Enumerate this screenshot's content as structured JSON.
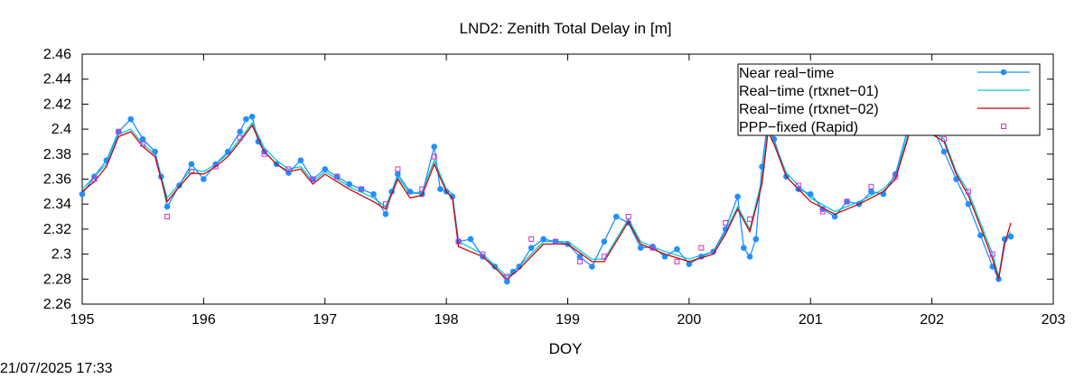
{
  "chart_data": {
    "type": "line",
    "title": "LND2: Zenith Total Delay in [m]",
    "xlabel": "DOY",
    "ylabel": "",
    "xlim": [
      195,
      203
    ],
    "ylim": [
      2.26,
      2.46
    ],
    "xticks": [
      195,
      196,
      197,
      198,
      199,
      200,
      201,
      202,
      203
    ],
    "yticks": [
      2.26,
      2.28,
      2.3,
      2.32,
      2.34,
      2.36,
      2.38,
      2.4,
      2.42,
      2.44,
      2.46
    ],
    "ytick_labels": [
      "2.26",
      "2.28",
      "2.3",
      "2.32",
      "2.34",
      "2.36",
      "2.38",
      "2.4",
      "2.42",
      "2.44",
      "2.46"
    ],
    "grid": false,
    "legend_position": "top-right",
    "series": [
      {
        "name": "Near real−time",
        "color": "#1e90ff",
        "style": "line-points",
        "x": [
          195.0,
          195.1,
          195.2,
          195.3,
          195.4,
          195.5,
          195.6,
          195.65,
          195.7,
          195.8,
          195.9,
          196.0,
          196.1,
          196.2,
          196.3,
          196.35,
          196.4,
          196.45,
          196.5,
          196.6,
          196.7,
          196.8,
          196.9,
          197.0,
          197.1,
          197.2,
          197.3,
          197.4,
          197.5,
          197.55,
          197.6,
          197.7,
          197.8,
          197.9,
          197.95,
          198.0,
          198.05,
          198.1,
          198.2,
          198.3,
          198.4,
          198.5,
          198.55,
          198.6,
          198.7,
          198.8,
          198.9,
          199.0,
          199.1,
          199.2,
          199.3,
          199.4,
          199.5,
          199.6,
          199.7,
          199.8,
          199.9,
          200.0,
          200.1,
          200.2,
          200.3,
          200.4,
          200.45,
          200.5,
          200.55,
          200.6,
          200.65,
          200.7,
          200.8,
          200.9,
          201.0,
          201.1,
          201.2,
          201.3,
          201.4,
          201.5,
          201.6,
          201.7,
          201.8,
          201.85,
          201.9,
          202.0,
          202.1,
          202.2,
          202.3,
          202.4,
          202.5,
          202.55,
          202.6,
          202.65
        ],
        "values": [
          2.348,
          2.362,
          2.375,
          2.398,
          2.408,
          2.392,
          2.382,
          2.362,
          2.338,
          2.355,
          2.372,
          2.36,
          2.372,
          2.382,
          2.398,
          2.408,
          2.41,
          2.39,
          2.382,
          2.372,
          2.365,
          2.375,
          2.36,
          2.368,
          2.362,
          2.356,
          2.352,
          2.348,
          2.332,
          2.35,
          2.364,
          2.35,
          2.348,
          2.386,
          2.352,
          2.35,
          2.346,
          2.31,
          2.312,
          2.298,
          2.29,
          2.278,
          2.286,
          2.29,
          2.305,
          2.312,
          2.31,
          2.308,
          2.298,
          2.29,
          2.31,
          2.33,
          2.325,
          2.305,
          2.306,
          2.298,
          2.304,
          2.292,
          2.298,
          2.302,
          2.32,
          2.346,
          2.305,
          2.298,
          2.312,
          2.37,
          2.408,
          2.392,
          2.362,
          2.352,
          2.348,
          2.336,
          2.33,
          2.342,
          2.34,
          2.35,
          2.348,
          2.364,
          2.4,
          2.41,
          2.398,
          2.402,
          2.382,
          2.36,
          2.34,
          2.315,
          2.29,
          2.28,
          2.312,
          2.314
        ]
      },
      {
        "name": "Real−time (rtxnet−01)",
        "color": "#00ced1",
        "style": "line",
        "x": [
          195.0,
          195.1,
          195.2,
          195.3,
          195.4,
          195.5,
          195.6,
          195.7,
          195.8,
          195.9,
          196.0,
          196.1,
          196.2,
          196.3,
          196.4,
          196.5,
          196.6,
          196.7,
          196.8,
          196.9,
          197.0,
          197.2,
          197.4,
          197.5,
          197.6,
          197.7,
          197.8,
          197.9,
          198.0,
          198.05,
          198.1,
          198.3,
          198.5,
          198.6,
          198.8,
          199.0,
          199.2,
          199.3,
          199.5,
          199.6,
          199.8,
          200.0,
          200.2,
          200.3,
          200.4,
          200.5,
          200.6,
          200.65,
          200.7,
          200.8,
          201.0,
          201.2,
          201.4,
          201.6,
          201.7,
          201.8,
          201.85,
          201.9,
          202.0,
          202.1,
          202.2,
          202.3,
          202.4,
          202.5,
          202.55,
          202.6,
          202.65
        ],
        "values": [
          2.352,
          2.362,
          2.372,
          2.396,
          2.4,
          2.388,
          2.38,
          2.345,
          2.356,
          2.368,
          2.366,
          2.372,
          2.38,
          2.392,
          2.405,
          2.385,
          2.375,
          2.368,
          2.37,
          2.358,
          2.366,
          2.354,
          2.345,
          2.338,
          2.362,
          2.348,
          2.35,
          2.375,
          2.352,
          2.348,
          2.31,
          2.3,
          2.282,
          2.29,
          2.31,
          2.31,
          2.296,
          2.296,
          2.328,
          2.31,
          2.302,
          2.296,
          2.302,
          2.318,
          2.338,
          2.32,
          2.36,
          2.402,
          2.39,
          2.365,
          2.345,
          2.334,
          2.342,
          2.352,
          2.362,
          2.395,
          2.422,
          2.41,
          2.398,
          2.392,
          2.366,
          2.35,
          2.325,
          2.3,
          2.282,
          2.31,
          2.318
        ]
      },
      {
        "name": "Real−time (rtxnet−02)",
        "color": "#cc0000",
        "style": "line",
        "x": [
          195.0,
          195.1,
          195.2,
          195.3,
          195.4,
          195.5,
          195.6,
          195.7,
          195.8,
          195.9,
          196.0,
          196.1,
          196.2,
          196.3,
          196.4,
          196.5,
          196.6,
          196.7,
          196.8,
          196.9,
          197.0,
          197.2,
          197.4,
          197.5,
          197.6,
          197.7,
          197.8,
          197.9,
          198.0,
          198.05,
          198.1,
          198.3,
          198.5,
          198.6,
          198.8,
          199.0,
          199.2,
          199.3,
          199.5,
          199.6,
          199.8,
          200.0,
          200.2,
          200.3,
          200.4,
          200.5,
          200.6,
          200.65,
          200.7,
          200.8,
          201.0,
          201.2,
          201.4,
          201.6,
          201.7,
          201.8,
          201.85,
          201.9,
          202.0,
          202.1,
          202.2,
          202.3,
          202.4,
          202.5,
          202.55,
          202.6,
          202.65
        ],
        "values": [
          2.35,
          2.358,
          2.37,
          2.394,
          2.398,
          2.386,
          2.378,
          2.342,
          2.354,
          2.365,
          2.364,
          2.37,
          2.378,
          2.39,
          2.403,
          2.382,
          2.372,
          2.366,
          2.368,
          2.356,
          2.364,
          2.352,
          2.342,
          2.336,
          2.36,
          2.345,
          2.347,
          2.372,
          2.35,
          2.345,
          2.306,
          2.298,
          2.28,
          2.288,
          2.308,
          2.308,
          2.294,
          2.294,
          2.326,
          2.308,
          2.3,
          2.294,
          2.3,
          2.316,
          2.336,
          2.318,
          2.356,
          2.398,
          2.388,
          2.362,
          2.342,
          2.332,
          2.34,
          2.35,
          2.36,
          2.392,
          2.424,
          2.408,
          2.396,
          2.39,
          2.364,
          2.347,
          2.322,
          2.296,
          2.28,
          2.308,
          2.325
        ]
      },
      {
        "name": "PPP−fixed (Rapid)",
        "color": "#cc33cc",
        "style": "points",
        "x": [
          195.1,
          195.3,
          195.5,
          195.7,
          195.9,
          196.1,
          196.3,
          196.5,
          196.7,
          196.9,
          197.1,
          197.3,
          197.5,
          197.6,
          197.8,
          197.9,
          198.1,
          198.3,
          198.5,
          198.7,
          198.9,
          199.1,
          199.3,
          199.5,
          199.7,
          199.9,
          200.1,
          200.3,
          200.5,
          200.7,
          200.9,
          201.1,
          201.3,
          201.5,
          201.7,
          201.9,
          202.1,
          202.3,
          202.5
        ],
        "values": [
          2.36,
          2.398,
          2.388,
          2.33,
          2.366,
          2.37,
          2.393,
          2.38,
          2.368,
          2.36,
          2.362,
          2.352,
          2.34,
          2.368,
          2.352,
          2.378,
          2.31,
          2.3,
          2.282,
          2.312,
          2.31,
          2.294,
          2.298,
          2.33,
          2.305,
          2.294,
          2.305,
          2.325,
          2.328,
          2.405,
          2.355,
          2.334,
          2.342,
          2.354,
          2.362,
          2.418,
          2.392,
          2.35,
          2.3
        ]
      }
    ]
  },
  "footer": {
    "timestamp": "21/07/2025 17:33"
  }
}
